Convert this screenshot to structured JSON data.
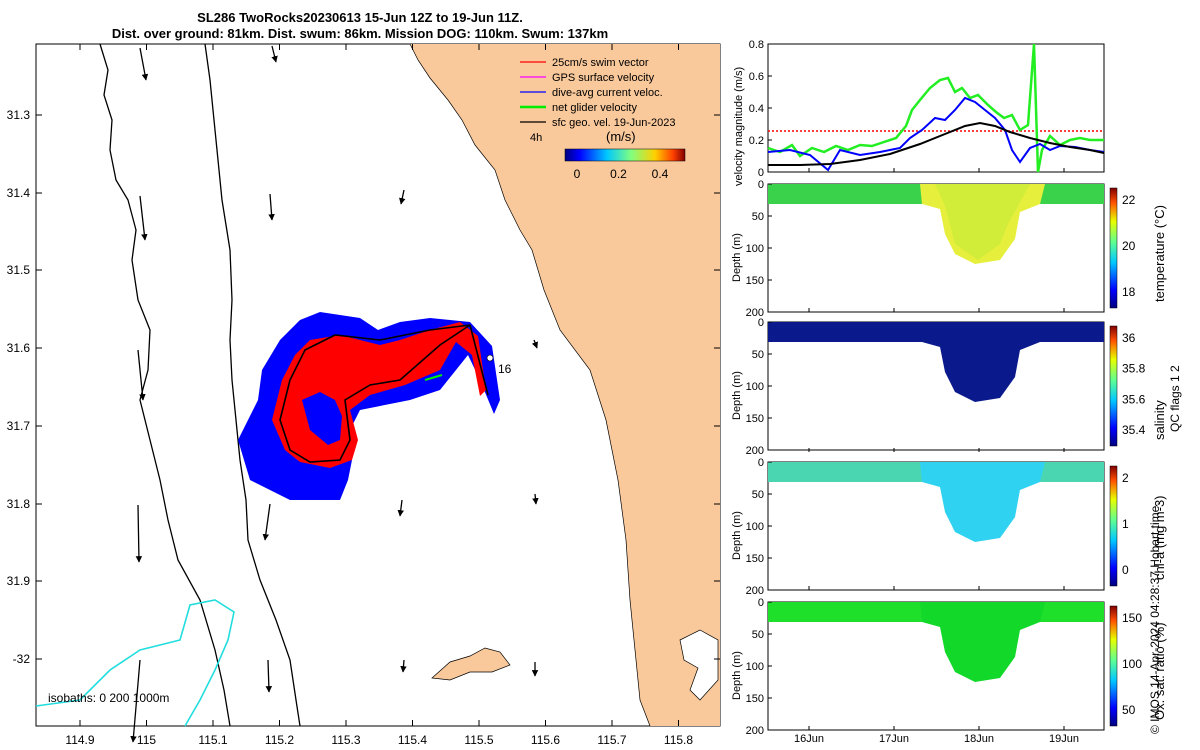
{
  "title_line1": "SL286 TwoRocks20230613 15-Jun 12Z to 19-Jun 11Z.",
  "title_line2": "Dist. over ground: 81km. Dist. swum: 86km. Mission DOG: 110km. Swum: 137km",
  "map": {
    "lat_ticks": [
      "31.3",
      "31.4",
      "31.5",
      "31.6",
      "31.7",
      "31.8",
      "31.9",
      "-32"
    ],
    "lon_ticks": [
      "114.9",
      "115",
      "115.1",
      "115.2",
      "115.3",
      "115.4",
      "115.5",
      "115.6",
      "115.7",
      "115.8"
    ],
    "legend": [
      {
        "label": "25cm/s swim vector",
        "color": "#ff0000"
      },
      {
        "label": "GPS surface velocity",
        "color": "#ff00ff"
      },
      {
        "label": "dive-avg current veloc.",
        "color": "#0000ff"
      },
      {
        "label": "net glider velocity",
        "color": "#00ee00"
      },
      {
        "label": "sfc geo. vel. 19-Jun-2023",
        "color": "#000000"
      }
    ],
    "legend_4h": "4h",
    "colorbar_unit": "(m/s)",
    "colorbar_ticks": [
      "0",
      "0.2",
      "0.4"
    ],
    "point_label": "16",
    "isobaths_label": "isobaths: 0   200  1000m",
    "land_color": "#f9c89b",
    "track_color": "#ff0000",
    "current_color": "#0000ff"
  },
  "velocity_panel": {
    "ylabel": "velocity magnitude (m/s)",
    "yticks": [
      "0",
      "0.2",
      "0.4",
      "0.6",
      "0.8"
    ]
  },
  "panels": [
    {
      "ylabel": "Depth (m)",
      "cblabel": "temperature (°C)",
      "cbticks": [
        "18",
        "20",
        "22"
      ]
    },
    {
      "ylabel": "Depth (m)",
      "cblabel": "salinity",
      "cbticks": [
        "35.4",
        "35.6",
        "35.8",
        "36"
      ]
    },
    {
      "ylabel": "Depth (m)",
      "cblabel": "chl-a (mg m-3)",
      "cbticks": [
        "0",
        "1",
        "2"
      ]
    },
    {
      "ylabel": "Depth (m)",
      "cblabel": "Ox. sat. ratio (%)",
      "cbticks": [
        "50",
        "100",
        "150"
      ]
    }
  ],
  "depth_ticks": [
    "0",
    "50",
    "100",
    "150",
    "200"
  ],
  "x_ticks": [
    "16Jun",
    "17Jun",
    "18Jun",
    "19Jun"
  ],
  "qc_label": "QC flags 1  2",
  "credit": "© IMOS 14-Apr-2024 04:28:37 Hobart time."
}
